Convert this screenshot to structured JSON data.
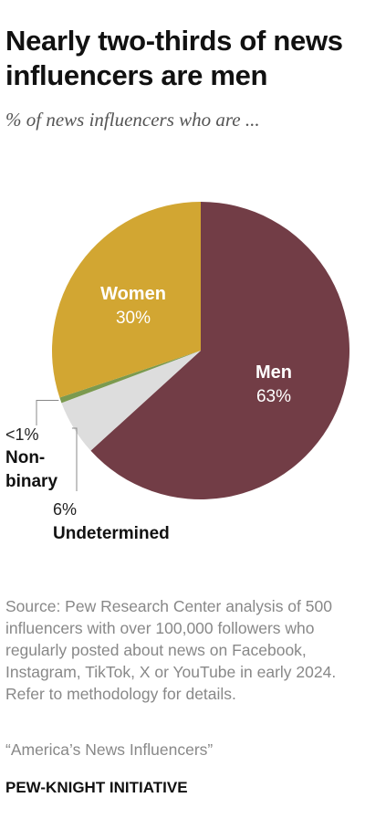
{
  "title": "Nearly two-thirds of news influencers are men",
  "subtitle": "% of news influencers who are ...",
  "chart_data": {
    "type": "pie",
    "slices": [
      {
        "name": "Men",
        "value": 63,
        "value_label": "63%",
        "color": "#723d46"
      },
      {
        "name": "Undetermined",
        "value": 6,
        "value_label": "6%",
        "color": "#dddddd"
      },
      {
        "name": "Non-binary",
        "value": 0.6,
        "value_label": "<1%",
        "color": "#7b9a4f"
      },
      {
        "name": "Women",
        "value": 30,
        "value_label": "30%",
        "color": "#d2a632"
      }
    ]
  },
  "source": "Source: Pew Research Center analysis of 500 influencers with over 100,000 followers who regularly posted about news on Facebook, Instagram, TikTok, X or YouTube in early 2024. Refer to methodology for details.",
  "publication": "“America’s News Influencers”",
  "brand": "PEW-KNIGHT INITIATIVE"
}
